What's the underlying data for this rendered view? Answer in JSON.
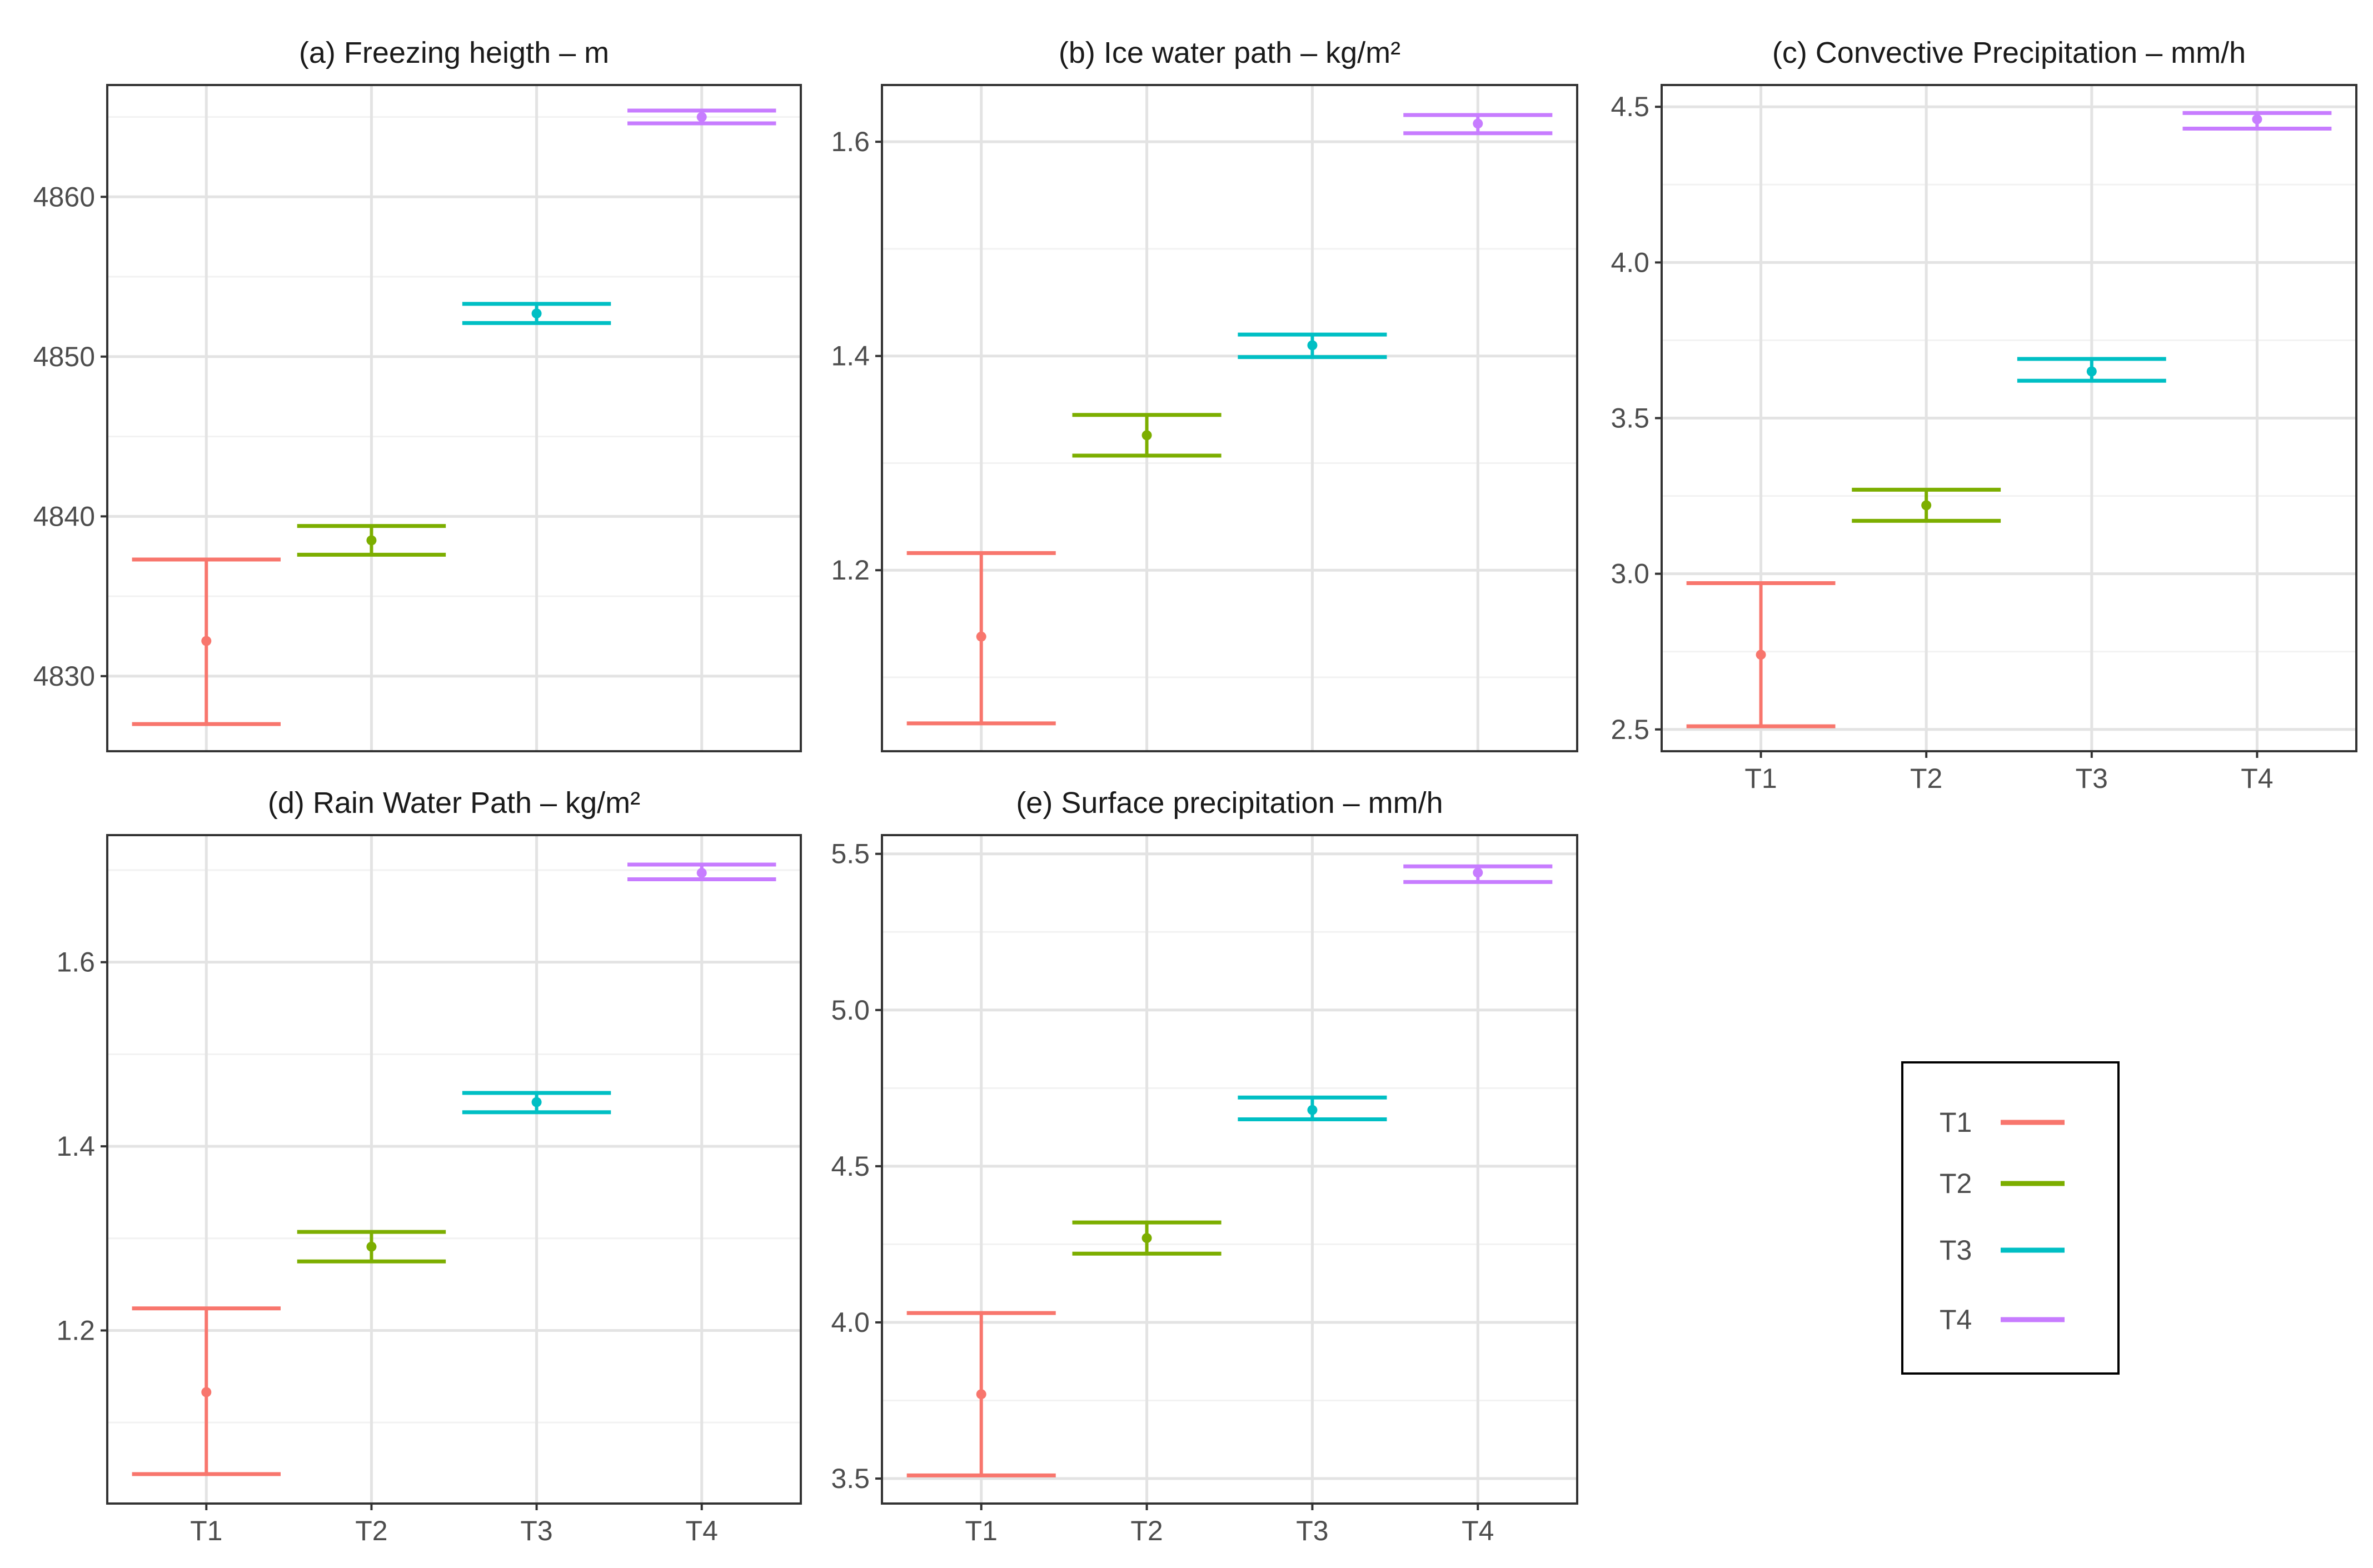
{
  "colors": {
    "T1": "#F8766D",
    "T2": "#7CAE00",
    "T3": "#00BFC4",
    "T4": "#C77CFF",
    "grid_major": "#e3e3e3",
    "grid_minor": "#f2f2f2",
    "frame": "#333333"
  },
  "legend": {
    "entries": [
      {
        "key": "T1",
        "label": "T1"
      },
      {
        "key": "T2",
        "label": "T2"
      },
      {
        "key": "T3",
        "label": "T3"
      },
      {
        "key": "T4",
        "label": "T4"
      }
    ]
  },
  "chart_data": [
    {
      "type": "errorbar",
      "panel": "a",
      "title": "(a) Freezing heigth – m",
      "categories": [
        "T1",
        "T2",
        "T3",
        "T4"
      ],
      "means": [
        4832.2,
        4838.5,
        4852.7,
        4865.0
      ],
      "lower": [
        4827.0,
        4837.6,
        4852.1,
        4864.6
      ],
      "upper": [
        4837.3,
        4839.4,
        4853.3,
        4865.4
      ],
      "ylim": [
        4825.3,
        4867.0
      ],
      "yticks": [
        4830,
        4840,
        4850,
        4860
      ],
      "ytick_labels": [
        "4830",
        "4840",
        "4850",
        "4860"
      ],
      "show_x_labels": false
    },
    {
      "type": "errorbar",
      "panel": "b",
      "title": "(b) Ice water path – kg/m²",
      "categories": [
        "T1",
        "T2",
        "T3",
        "T4"
      ],
      "means": [
        1.138,
        1.326,
        1.41,
        1.617
      ],
      "lower": [
        1.057,
        1.307,
        1.399,
        1.608
      ],
      "upper": [
        1.216,
        1.345,
        1.42,
        1.625
      ],
      "ylim": [
        1.031,
        1.653
      ],
      "yticks": [
        1.2,
        1.4,
        1.6
      ],
      "ytick_labels": [
        "1.2",
        "1.4",
        "1.6"
      ],
      "show_x_labels": false
    },
    {
      "type": "errorbar",
      "panel": "c",
      "title": "(c) Convective Precipitation – mm/h",
      "categories": [
        "T1",
        "T2",
        "T3",
        "T4"
      ],
      "means": [
        2.74,
        3.22,
        3.65,
        4.46
      ],
      "lower": [
        2.51,
        3.17,
        3.62,
        4.43
      ],
      "upper": [
        2.97,
        3.27,
        3.69,
        4.48
      ],
      "ylim": [
        2.43,
        4.57
      ],
      "yticks": [
        2.5,
        3.0,
        3.5,
        4.0,
        4.5
      ],
      "ytick_labels": [
        "2.5",
        "3.0",
        "3.5",
        "4.0",
        "4.5"
      ],
      "show_x_labels": true
    },
    {
      "type": "errorbar",
      "panel": "d",
      "title": "(d) Rain Water Path – kg/m²",
      "categories": [
        "T1",
        "T2",
        "T3",
        "T4"
      ],
      "means": [
        1.133,
        1.291,
        1.448,
        1.697
      ],
      "lower": [
        1.044,
        1.275,
        1.437,
        1.69
      ],
      "upper": [
        1.224,
        1.307,
        1.458,
        1.706
      ],
      "ylim": [
        1.012,
        1.738
      ],
      "yticks": [
        1.2,
        1.4,
        1.6
      ],
      "ytick_labels": [
        "1.2",
        "1.4",
        "1.6"
      ],
      "show_x_labels": true
    },
    {
      "type": "errorbar",
      "panel": "e",
      "title": "(e) Surface precipitation – mm/h",
      "categories": [
        "T1",
        "T2",
        "T3",
        "T4"
      ],
      "means": [
        3.77,
        4.27,
        4.68,
        5.44
      ],
      "lower": [
        3.51,
        4.22,
        4.65,
        5.41
      ],
      "upper": [
        4.03,
        4.32,
        4.72,
        5.46
      ],
      "ylim": [
        3.42,
        5.56
      ],
      "yticks": [
        3.5,
        4.0,
        4.5,
        5.0,
        5.5
      ],
      "ytick_labels": [
        "3.5",
        "4.0",
        "4.5",
        "5.0",
        "5.5"
      ],
      "show_x_labels": true
    }
  ]
}
